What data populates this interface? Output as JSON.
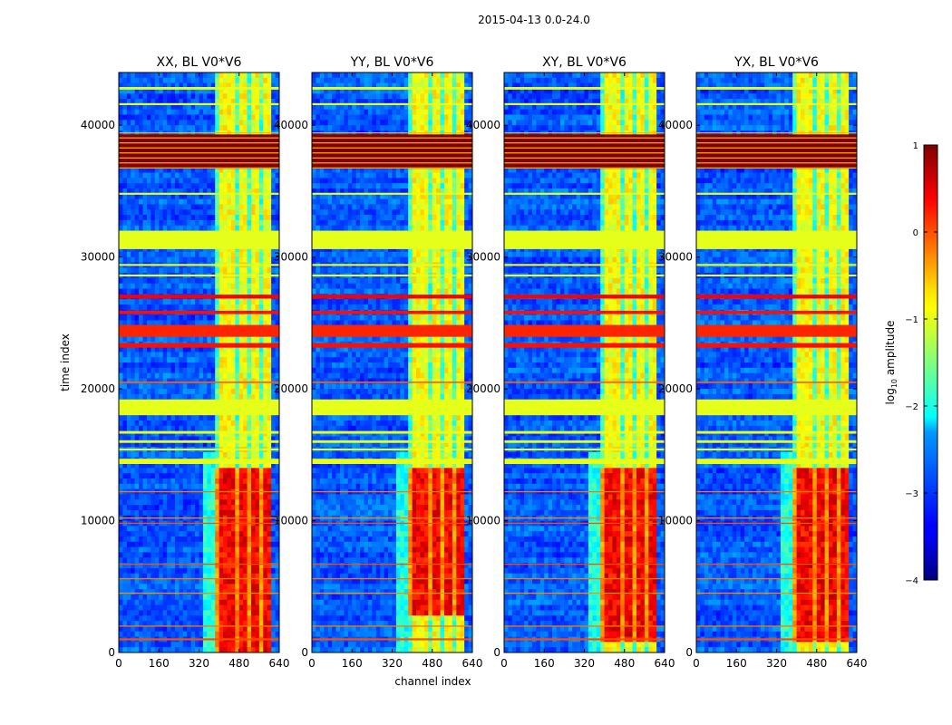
{
  "figure": {
    "suptitle": "2015-04-13 0.0-24.0"
  },
  "chart_data": [
    {
      "type": "heatmap",
      "title": "XX, BL V0*V6",
      "xlabel": "",
      "ylabel": "time index",
      "xlim": [
        0,
        640
      ],
      "ylim": [
        0,
        44000
      ],
      "xticks": [
        0,
        160,
        320,
        480,
        640
      ],
      "yticks": [
        0,
        10000,
        20000,
        30000,
        40000
      ],
      "data_mode": "amplitude_map",
      "strong_region_y": [
        0,
        14000
      ],
      "colormap": "jet"
    },
    {
      "type": "heatmap",
      "title": "YY, BL V0*V6",
      "xlabel": "channel index",
      "ylabel": "",
      "xlim": [
        0,
        640
      ],
      "ylim": [
        0,
        44000
      ],
      "xticks": [
        0,
        160,
        320,
        480,
        640
      ],
      "yticks": [
        0,
        10000,
        20000,
        30000,
        40000
      ],
      "data_mode": "amplitude_map",
      "strong_region_y": [
        3000,
        14000
      ],
      "colormap": "jet"
    },
    {
      "type": "heatmap",
      "title": "XY, BL V0*V6",
      "xlabel": "",
      "ylabel": "",
      "xlim": [
        0,
        640
      ],
      "ylim": [
        0,
        44000
      ],
      "xticks": [
        0,
        160,
        320,
        480,
        640
      ],
      "yticks": [
        0,
        10000,
        20000,
        30000,
        40000
      ],
      "data_mode": "amplitude_map",
      "strong_region_y": [
        1000,
        14000
      ],
      "colormap": "jet"
    },
    {
      "type": "heatmap",
      "title": "YX, BL V0*V6",
      "xlabel": "",
      "ylabel": "",
      "xlim": [
        0,
        640
      ],
      "ylim": [
        0,
        44000
      ],
      "xticks": [
        0,
        160,
        320,
        480,
        640
      ],
      "yticks": [
        0,
        10000,
        20000,
        30000,
        40000
      ],
      "data_mode": "amplitude_map",
      "strong_region_y": [
        1000,
        14000
      ],
      "colormap": "jet"
    }
  ],
  "colorbar": {
    "label": "log",
    "label_sub": "10",
    "label_rest": " amplitude",
    "range": [
      -4,
      1
    ],
    "ticks": [
      1,
      0,
      -1,
      -2,
      -3,
      -4
    ],
    "tick_labels": [
      "1",
      "0",
      "−1",
      "−2",
      "−3",
      "−4"
    ]
  }
}
